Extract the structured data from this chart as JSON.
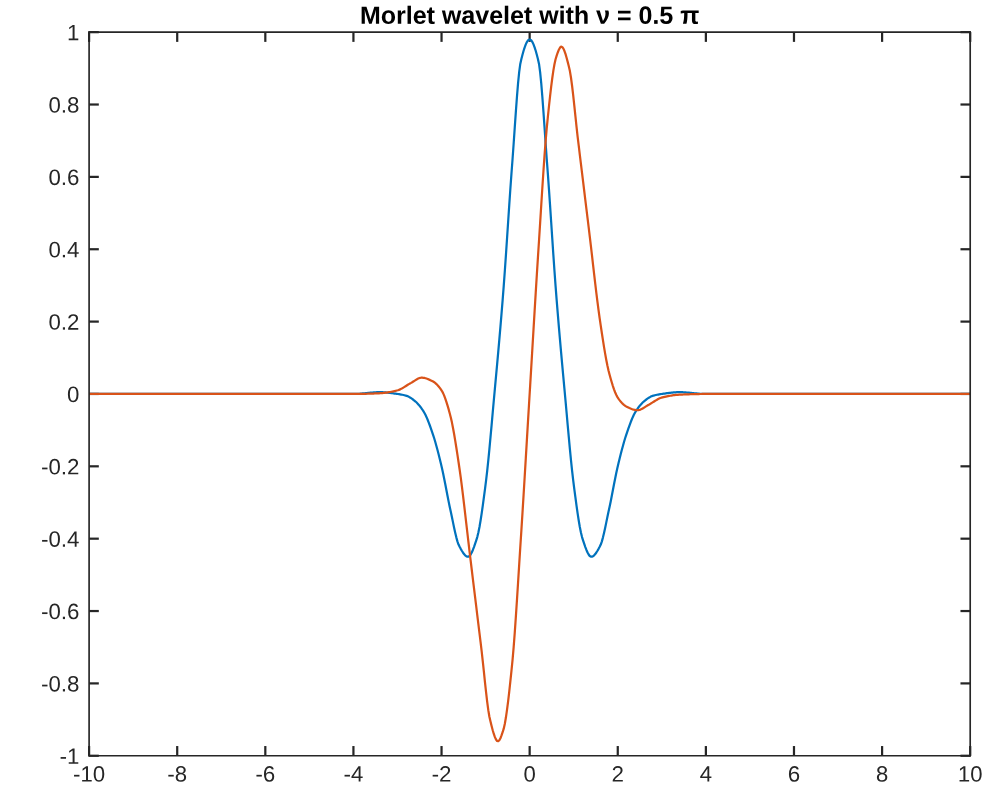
{
  "chart_data": {
    "type": "line",
    "title": "Morlet wavelet with ν = 0.5 π",
    "xlim": [
      -10,
      10
    ],
    "xticks": [
      -10,
      -8,
      -6,
      -4,
      -2,
      0,
      2,
      4,
      6,
      8,
      10
    ],
    "ylim": [
      -1,
      1
    ],
    "yticks": [
      -1,
      -0.8,
      -0.6,
      -0.4,
      -0.2,
      0,
      0.2,
      0.4,
      0.6,
      0.8,
      1
    ],
    "grid": false,
    "legend": false,
    "marker": "none",
    "line_style": "solid",
    "series": [
      {
        "color": "#0072bd",
        "x": [
          -10,
          -4,
          -3.4,
          -3.0,
          -2.8,
          -2.6,
          -2.4,
          -2.2,
          -2.0,
          -1.8,
          -1.6,
          -1.4,
          -1.2,
          -1.0,
          -0.8,
          -0.6,
          -0.4,
          -0.2,
          0,
          0.2,
          0.4,
          0.6,
          0.8,
          1.0,
          1.2,
          1.4,
          1.6,
          1.8,
          2.0,
          2.2,
          2.4,
          2.6,
          2.8,
          3.0,
          3.4,
          4,
          10
        ],
        "values": [
          0,
          0,
          0.005,
          0,
          -0.005,
          -0.02,
          -0.05,
          -0.11,
          -0.2,
          -0.32,
          -0.42,
          -0.45,
          -0.4,
          -0.25,
          0,
          0.28,
          0.63,
          0.92,
          0.98,
          0.92,
          0.63,
          0.28,
          0,
          -0.25,
          -0.4,
          -0.45,
          -0.42,
          -0.32,
          -0.2,
          -0.11,
          -0.05,
          -0.02,
          -0.005,
          0,
          0.005,
          0,
          0
        ]
      },
      {
        "color": "#d95319",
        "x": [
          -10,
          -4,
          -3.4,
          -3.0,
          -2.7,
          -2.45,
          -2.2,
          -2.0,
          -1.8,
          -1.6,
          -1.35,
          -1.1,
          -0.9,
          -0.72,
          -0.6,
          -0.4,
          -0.2,
          0,
          0.2,
          0.4,
          0.6,
          0.72,
          0.9,
          1.1,
          1.35,
          1.6,
          1.8,
          2.0,
          2.2,
          2.45,
          2.7,
          3.0,
          3.4,
          4,
          10
        ],
        "values": [
          0,
          0,
          0.002,
          0.01,
          0.03,
          0.045,
          0.035,
          0.01,
          -0.06,
          -0.2,
          -0.45,
          -0.7,
          -0.9,
          -0.96,
          -0.93,
          -0.75,
          -0.4,
          0,
          0.4,
          0.75,
          0.93,
          0.96,
          0.9,
          0.7,
          0.45,
          0.2,
          0.06,
          -0.01,
          -0.035,
          -0.045,
          -0.03,
          -0.01,
          -0.002,
          0,
          0
        ]
      }
    ]
  }
}
